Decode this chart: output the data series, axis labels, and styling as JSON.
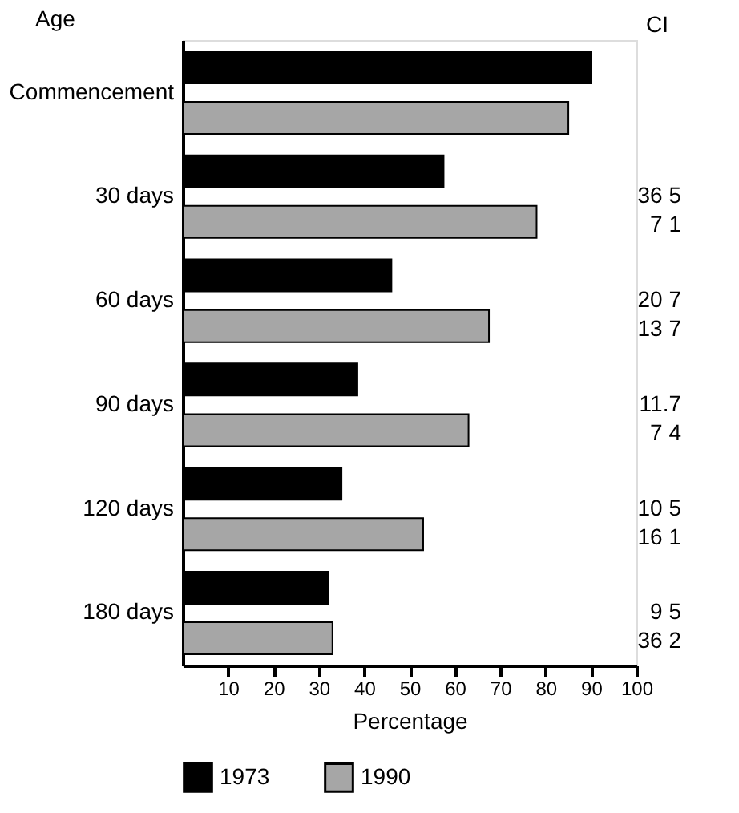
{
  "chart_data": {
    "type": "bar",
    "orientation": "horizontal",
    "ylabel": "Age",
    "xlabel": "Percentage",
    "categories": [
      "Commencement",
      "30 days",
      "60 days",
      "90 days",
      "120 days",
      "180 days"
    ],
    "series": [
      {
        "name": "1973",
        "color": "#000000",
        "values": [
          90,
          57.5,
          46,
          38.5,
          35,
          32
        ]
      },
      {
        "name": "1990",
        "color": "#a6a6a6",
        "values": [
          85,
          78,
          67.5,
          63,
          53,
          33
        ]
      }
    ],
    "xlim": [
      0,
      100
    ],
    "xticks": [
      10,
      20,
      30,
      40,
      50,
      60,
      70,
      80,
      90,
      100
    ],
    "grid": false,
    "legend": "bottom",
    "annotations": [
      "CI",
      "36 5\n7 1",
      "20 7\n13 7",
      "11.7\n7 4",
      "10 5\n16 1",
      "9 5\n36 2"
    ]
  }
}
